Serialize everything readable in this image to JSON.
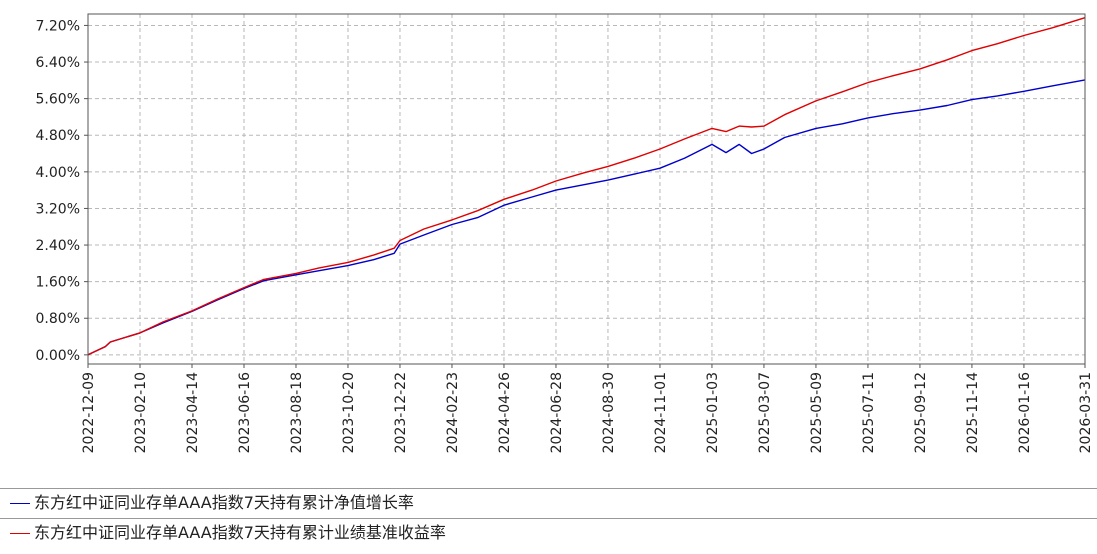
{
  "chart_data": {
    "type": "line",
    "title": "",
    "xlabel": "",
    "ylabel": "",
    "ylim": [
      -0.2,
      7.45
    ],
    "y_ticks": [
      0.0,
      0.8,
      1.6,
      2.4,
      3.2,
      4.0,
      4.8,
      5.6,
      6.4,
      7.2
    ],
    "y_tick_labels": [
      "0.00%",
      "0.80%",
      "1.60%",
      "2.40%",
      "3.20%",
      "4.00%",
      "4.80%",
      "5.60%",
      "6.40%",
      "7.20%"
    ],
    "x_tick_labels": [
      "2022-12-09",
      "2023-02-10",
      "2023-04-14",
      "2023-06-16",
      "2023-08-18",
      "2023-10-20",
      "2023-12-22",
      "2024-02-23",
      "2024-04-26",
      "2024-06-28",
      "2024-08-30",
      "2024-11-01",
      "2025-01-03",
      "2025-03-07",
      "2025-05-09",
      "2025-07-11",
      "2025-09-12",
      "2025-11-14",
      "2026-01-16",
      "2026-03-31"
    ],
    "grid": true,
    "legend_position": "bottom",
    "x": [
      "2022-12-09",
      "2022-12-30",
      "2023-01-05",
      "2023-02-10",
      "2023-03-10",
      "2023-04-14",
      "2023-05-15",
      "2023-06-16",
      "2023-07-10",
      "2023-08-18",
      "2023-09-15",
      "2023-10-20",
      "2023-11-20",
      "2023-12-15",
      "2023-12-22",
      "2024-01-20",
      "2024-02-23",
      "2024-03-25",
      "2024-04-26",
      "2024-05-30",
      "2024-06-28",
      "2024-08-01",
      "2024-08-30",
      "2024-10-01",
      "2024-11-01",
      "2024-12-01",
      "2025-01-03",
      "2025-01-20",
      "2025-02-05",
      "2025-02-20",
      "2025-03-07",
      "2025-04-01",
      "2025-05-09",
      "2025-06-10",
      "2025-07-11",
      "2025-08-10",
      "2025-09-12",
      "2025-10-15",
      "2025-11-14",
      "2025-12-15",
      "2026-01-16",
      "2026-02-20",
      "2026-03-31"
    ],
    "series": [
      {
        "name": "东方红中证同业存单AAA指数7天持有累计净值增长率",
        "color": "#0000cc",
        "values": [
          0.0,
          0.18,
          0.28,
          0.48,
          0.7,
          0.95,
          1.2,
          1.45,
          1.62,
          1.75,
          1.84,
          1.95,
          2.08,
          2.22,
          2.42,
          2.62,
          2.85,
          3.0,
          3.27,
          3.45,
          3.6,
          3.72,
          3.82,
          3.95,
          4.08,
          4.3,
          4.6,
          4.42,
          4.6,
          4.4,
          4.5,
          4.75,
          4.95,
          5.05,
          5.18,
          5.27,
          5.35,
          5.45,
          5.58,
          5.66,
          5.76,
          5.88,
          6.01
        ]
      },
      {
        "name": "东方红中证同业存单AAA指数7天持有累计业绩基准收益率",
        "color": "#e00000",
        "values": [
          0.0,
          0.18,
          0.28,
          0.48,
          0.72,
          0.96,
          1.22,
          1.47,
          1.65,
          1.78,
          1.9,
          2.02,
          2.18,
          2.33,
          2.5,
          2.75,
          2.95,
          3.15,
          3.4,
          3.6,
          3.8,
          3.98,
          4.12,
          4.3,
          4.5,
          4.72,
          4.95,
          4.88,
          5.0,
          4.98,
          5.0,
          5.25,
          5.55,
          5.75,
          5.95,
          6.1,
          6.25,
          6.45,
          6.65,
          6.8,
          6.98,
          7.15,
          7.37
        ]
      }
    ]
  }
}
